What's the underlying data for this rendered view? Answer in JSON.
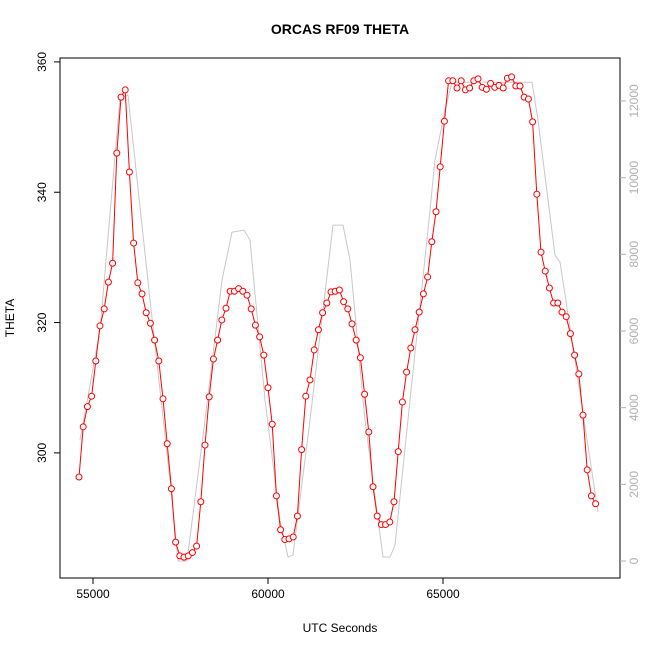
{
  "chart_data": {
    "type": "line",
    "title": "ORCAS RF09 THETA",
    "xlabel": "UTC Seconds",
    "ylabel": "THETA",
    "xlim": [
      54057,
      70057
    ],
    "ylim": [
      280.8,
      360.6
    ],
    "y2lim": [
      -443,
      13121
    ],
    "xticks": [
      55000,
      60000,
      65000
    ],
    "yticks": [
      300,
      320,
      340,
      360
    ],
    "y2ticks": [
      0,
      2000,
      4000,
      6000,
      8000,
      10000,
      12000
    ],
    "series": [
      {
        "color": "#ff0000",
        "markers": true,
        "x": [
          54600,
          54720,
          54840,
          54960,
          55080,
          55200,
          55320,
          55440,
          55560,
          55680,
          55800,
          55920,
          56040,
          56160,
          56280,
          56400,
          56520,
          56640,
          56760,
          56880,
          57000,
          57120,
          57240,
          57360,
          57480,
          57600,
          57720,
          57840,
          57960,
          58080,
          58200,
          58320,
          58440,
          58560,
          58680,
          58800,
          58920,
          59040,
          59160,
          59280,
          59400,
          59520,
          59640,
          59760,
          59880,
          60000,
          60120,
          60240,
          60360,
          60480,
          60600,
          60720,
          60840,
          60960,
          61080,
          61200,
          61320,
          61440,
          61560,
          61680,
          61800,
          61920,
          62040,
          62160,
          62280,
          62400,
          62520,
          62640,
          62760,
          62880,
          63000,
          63120,
          63240,
          63360,
          63480,
          63600,
          63720,
          63840,
          63960,
          64080,
          64200,
          64320,
          64440,
          64560,
          64680,
          64800,
          64920,
          65040,
          65160,
          65280,
          65400,
          65520,
          65640,
          65760,
          65880,
          66000,
          66120,
          66240,
          66360,
          66480,
          66600,
          66720,
          66840,
          66960,
          67080,
          67200,
          67320,
          67440,
          67560,
          67680,
          67800,
          67920,
          68040,
          68160,
          68280,
          68400,
          68520,
          68640,
          68760,
          68880,
          69000,
          69120,
          69240,
          69360
        ],
        "values": [
          296.3,
          304.0,
          307.1,
          308.7,
          314.1,
          319.5,
          322.1,
          326.2,
          329.1,
          346.0,
          354.6,
          355.7,
          343.1,
          332.2,
          326.1,
          324.4,
          321.5,
          319.9,
          317.3,
          314.1,
          308.3,
          301.4,
          294.5,
          286.3,
          284.2,
          284.0,
          284.2,
          284.7,
          285.7,
          292.5,
          301.2,
          308.6,
          314.4,
          317.3,
          320.4,
          322.2,
          324.8,
          324.8,
          325.2,
          324.8,
          324.2,
          322.1,
          319.6,
          317.8,
          315.0,
          310.0,
          304.4,
          293.4,
          288.2,
          286.7,
          286.8,
          287.1,
          290.3,
          300.5,
          308.7,
          311.2,
          315.8,
          318.9,
          321.5,
          323.0,
          324.7,
          324.8,
          325.0,
          323.2,
          322.1,
          319.8,
          317.3,
          314.6,
          309.0,
          303.2,
          294.8,
          290.3,
          289.0,
          289.0,
          289.4,
          292.5,
          300.2,
          307.8,
          312.4,
          316.1,
          318.9,
          321.6,
          324.4,
          327.0,
          332.4,
          337.0,
          343.9,
          350.9,
          357.1,
          357.1,
          356.0,
          357.1,
          355.7,
          356.0,
          357.1,
          357.4,
          356.1,
          355.8,
          356.7,
          356.1,
          356.4,
          356.0,
          357.5,
          357.7,
          356.3,
          356.3,
          354.6,
          354.3,
          350.8,
          339.7,
          330.8,
          327.9,
          325.3,
          323.0,
          323.0,
          321.6,
          320.9,
          318.3,
          315.0,
          312.1,
          305.8,
          297.4,
          293.4,
          292.2
        ]
      },
      {
        "color": "#c8c8c8",
        "axis": "y2",
        "markers": false,
        "x": [
          54629,
          55200,
          55771,
          56000,
          56629,
          57200,
          57429,
          57686,
          58200,
          58686,
          58971,
          59314,
          59486,
          59914,
          60343,
          60571,
          60714,
          61200,
          61857,
          62143,
          62343,
          62771,
          63286,
          63486,
          63629,
          64057,
          64571,
          64771,
          65057,
          65257,
          67543,
          67714,
          68200,
          68343,
          68771,
          69429
        ],
        "values": [
          3155,
          6023,
          12073,
          12151,
          6806,
          2112,
          0,
          0,
          3677,
          7327,
          8579,
          8631,
          8370,
          4198,
          1069,
          104,
          156,
          3677,
          8761,
          8761,
          7849,
          3677,
          104,
          104,
          417,
          4198,
          8631,
          10456,
          11760,
          12490,
          12490,
          11499,
          7979,
          7797,
          5241,
          1278
        ]
      }
    ]
  }
}
